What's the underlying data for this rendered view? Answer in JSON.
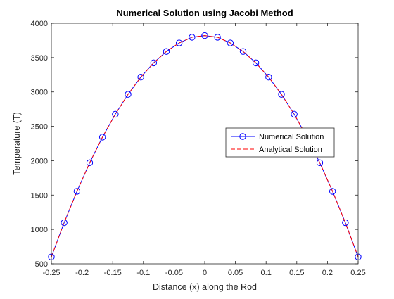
{
  "chart_data": {
    "type": "line",
    "title": "Numerical Solution using Jacobi Method",
    "xlabel": "Distance (x) along the Rod",
    "ylabel": "Temperature (T)",
    "xlim": [
      -0.25,
      0.25
    ],
    "ylim": [
      500,
      4000
    ],
    "xticks": [
      -0.25,
      -0.2,
      -0.15,
      -0.1,
      -0.05,
      0,
      0.05,
      0.1,
      0.15,
      0.2,
      0.25
    ],
    "xtick_labels": [
      "-0.25",
      "-0.2",
      "-0.15",
      "-0.1",
      "-0.05",
      "0",
      "0.05",
      "0.1",
      "0.15",
      "0.2",
      "0.25"
    ],
    "yticks": [
      500,
      1000,
      1500,
      2000,
      2500,
      3000,
      3500,
      4000
    ],
    "ytick_labels": [
      "500",
      "1000",
      "1500",
      "2000",
      "2500",
      "3000",
      "3500",
      "4000"
    ],
    "grid": false,
    "legend_position": "right",
    "series": [
      {
        "name": "Numerical Solution",
        "style": "solid line with circle markers",
        "color": "#0000ff",
        "x": [
          -0.25,
          -0.2292,
          -0.2083,
          -0.1875,
          -0.1667,
          -0.1458,
          -0.125,
          -0.1042,
          -0.0833,
          -0.0625,
          -0.0417,
          -0.0208,
          0,
          0.0208,
          0.0417,
          0.0625,
          0.0833,
          0.1042,
          0.125,
          0.1458,
          0.1667,
          0.1875,
          0.2083,
          0.2292,
          0.25
        ],
        "y": [
          600,
          1098,
          1555,
          1970,
          2343,
          2676,
          2965,
          3215,
          3423,
          3589,
          3713,
          3796,
          3820,
          3796,
          3713,
          3589,
          3423,
          3215,
          2965,
          2676,
          2343,
          1970,
          1555,
          1098,
          600
        ]
      },
      {
        "name": "Analytical Solution",
        "style": "dashed line",
        "color": "#ff0000",
        "x": [
          -0.25,
          -0.2292,
          -0.2083,
          -0.1875,
          -0.1667,
          -0.1458,
          -0.125,
          -0.1042,
          -0.0833,
          -0.0625,
          -0.0417,
          -0.0208,
          0,
          0.0208,
          0.0417,
          0.0625,
          0.0833,
          0.1042,
          0.125,
          0.1458,
          0.1667,
          0.1875,
          0.2083,
          0.2292,
          0.25
        ],
        "y": [
          600,
          1098,
          1555,
          1970,
          2343,
          2676,
          2965,
          3215,
          3423,
          3589,
          3713,
          3796,
          3820,
          3796,
          3713,
          3589,
          3423,
          3215,
          2965,
          2676,
          2343,
          1970,
          1555,
          1098,
          600
        ]
      }
    ]
  }
}
